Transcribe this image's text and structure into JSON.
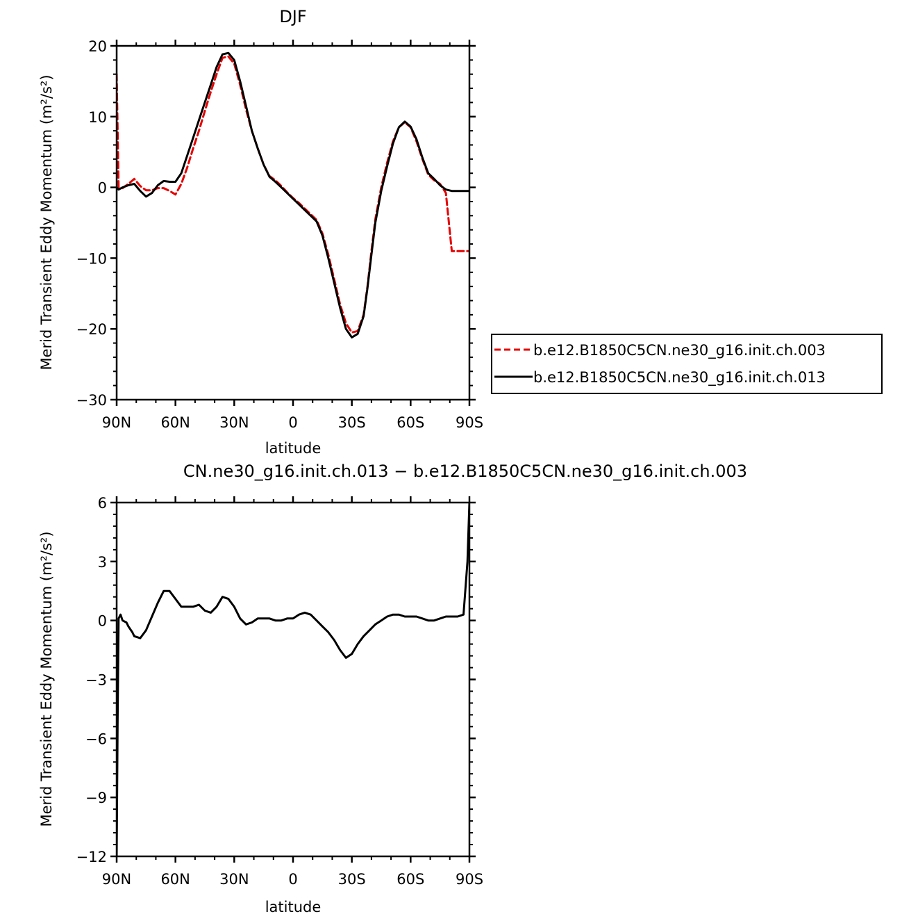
{
  "chart_data": [
    {
      "type": "line",
      "title": "DJF",
      "xlabel": "latitude",
      "ylabel": "Merid Transient Eddy Momentum (m²/s²)",
      "x_ticks": [
        {
          "value": 90,
          "label": "90N"
        },
        {
          "value": 60,
          "label": "60N"
        },
        {
          "value": 30,
          "label": "30N"
        },
        {
          "value": 0,
          "label": "0"
        },
        {
          "value": -30,
          "label": "30S"
        },
        {
          "value": -60,
          "label": "60S"
        },
        {
          "value": -90,
          "label": "90S"
        }
      ],
      "y_ticks": [
        {
          "value": 20,
          "label": "20"
        },
        {
          "value": 10,
          "label": "10"
        },
        {
          "value": 0,
          "label": "0"
        },
        {
          "value": -10,
          "label": "−10"
        },
        {
          "value": -20,
          "label": "−20"
        },
        {
          "value": -30,
          "label": "−30"
        }
      ],
      "xlim": [
        90,
        -90
      ],
      "ylim": [
        -30,
        20
      ],
      "legend": "outside-right",
      "series": [
        {
          "name": "b.e12.B1850C5CN.ne30_g16.init.ch.003",
          "color": "#e60000",
          "dash": "dashed",
          "x": [
            90,
            89,
            87,
            84,
            81,
            78,
            75,
            72,
            69,
            66,
            63,
            60,
            57,
            54,
            51,
            48,
            45,
            42,
            39,
            36,
            33,
            30,
            27,
            24,
            21,
            18,
            15,
            12,
            9,
            6,
            3,
            0,
            -3,
            -6,
            -9,
            -12,
            -15,
            -18,
            -21,
            -24,
            -27,
            -30,
            -33,
            -36,
            -38,
            -40,
            -42,
            -45,
            -48,
            -51,
            -54,
            -57,
            -60,
            -63,
            -66,
            -69,
            -72,
            -75,
            -78,
            -81,
            -84,
            -87,
            -89,
            -90
          ],
          "y": [
            16,
            0,
            -0.1,
            0.5,
            1.2,
            0.2,
            -0.4,
            -0.4,
            -0.1,
            -0.1,
            -0.5,
            -1.0,
            0.5,
            2.8,
            5.5,
            8.0,
            10.8,
            13.5,
            16.0,
            18.3,
            18.5,
            17.5,
            14.5,
            11.0,
            8.0,
            5.5,
            3.2,
            1.6,
            1.0,
            0.2,
            -0.7,
            -1.5,
            -2.2,
            -3.0,
            -3.8,
            -4.6,
            -6.5,
            -9.5,
            -13.0,
            -16.5,
            -19.2,
            -20.5,
            -20.3,
            -18.0,
            -14.0,
            -9.0,
            -4.5,
            0.0,
            3.5,
            6.5,
            8.5,
            9.2,
            8.5,
            6.5,
            4.0,
            1.8,
            1.0,
            0.5,
            -0.8,
            -9.0,
            -9.0,
            -9.0,
            -9.0,
            -9.0
          ]
        },
        {
          "name": "b.e12.B1850C5CN.ne30_g16.init.ch.013",
          "color": "#000000",
          "dash": "solid",
          "x": [
            90,
            89,
            87,
            84,
            81,
            78,
            75,
            72,
            69,
            66,
            63,
            60,
            57,
            54,
            51,
            48,
            45,
            42,
            39,
            36,
            33,
            30,
            27,
            24,
            21,
            18,
            15,
            12,
            9,
            6,
            3,
            0,
            -3,
            -6,
            -9,
            -12,
            -15,
            -18,
            -21,
            -24,
            -27,
            -30,
            -33,
            -36,
            -38,
            -40,
            -42,
            -45,
            -48,
            -51,
            -54,
            -57,
            -60,
            -63,
            -66,
            -69,
            -72,
            -75,
            -78,
            -81,
            -84,
            -87,
            -89,
            -90
          ],
          "y": [
            0,
            -0.3,
            0.0,
            0.3,
            0.5,
            -0.5,
            -1.3,
            -0.8,
            0.3,
            0.9,
            0.8,
            0.8,
            2.0,
            4.5,
            7.0,
            9.5,
            12.0,
            14.5,
            17.0,
            18.8,
            19.0,
            18.0,
            15.0,
            11.5,
            8.0,
            5.5,
            3.2,
            1.5,
            0.8,
            0.0,
            -0.8,
            -1.6,
            -2.4,
            -3.2,
            -4.0,
            -4.8,
            -6.8,
            -10.0,
            -13.5,
            -17.0,
            -20.0,
            -21.2,
            -20.7,
            -18.2,
            -14.2,
            -9.5,
            -5.0,
            -0.5,
            3.0,
            6.2,
            8.5,
            9.3,
            8.6,
            6.8,
            4.2,
            2.0,
            1.2,
            0.3,
            -0.3,
            -0.5,
            -0.5,
            -0.5,
            -0.5,
            -0.5
          ]
        }
      ]
    },
    {
      "type": "line",
      "title": "CN.ne30_g16.init.ch.013 − b.e12.B1850C5CN.ne30_g16.init.ch.003",
      "xlabel": "latitude",
      "ylabel": "Merid Transient Eddy Momentum (m²/s²)",
      "x_ticks": [
        {
          "value": 90,
          "label": "90N"
        },
        {
          "value": 60,
          "label": "60N"
        },
        {
          "value": 30,
          "label": "30N"
        },
        {
          "value": 0,
          "label": "0"
        },
        {
          "value": -30,
          "label": "30S"
        },
        {
          "value": -60,
          "label": "60S"
        },
        {
          "value": -90,
          "label": "90S"
        }
      ],
      "y_ticks": [
        {
          "value": 6,
          "label": "6"
        },
        {
          "value": 3,
          "label": "3"
        },
        {
          "value": 0,
          "label": "0"
        },
        {
          "value": -3,
          "label": "−3"
        },
        {
          "value": -6,
          "label": "−6"
        },
        {
          "value": -9,
          "label": "−9"
        },
        {
          "value": -12,
          "label": "−12"
        }
      ],
      "xlim": [
        90,
        -90
      ],
      "ylim": [
        -12,
        6
      ],
      "series": [
        {
          "color": "#000000",
          "dash": "solid",
          "x": [
            90,
            89.5,
            89,
            88,
            87,
            85,
            84,
            82,
            81,
            78,
            75,
            72,
            69,
            66,
            63,
            60,
            57,
            54,
            51,
            48,
            45,
            42,
            39,
            36,
            33,
            30,
            27,
            24,
            21,
            18,
            15,
            12,
            9,
            6,
            3,
            0,
            -3,
            -6,
            -9,
            -12,
            -15,
            -18,
            -21,
            -24,
            -27,
            -30,
            -33,
            -36,
            -39,
            -42,
            -45,
            -48,
            -51,
            -54,
            -57,
            -60,
            -63,
            -66,
            -69,
            -72,
            -75,
            -78,
            -81,
            -84,
            -87,
            -89,
            -90
          ],
          "y": [
            -12,
            -5,
            0.1,
            0.3,
            0.0,
            -0.1,
            -0.3,
            -0.6,
            -0.8,
            -0.9,
            -0.5,
            0.2,
            0.9,
            1.5,
            1.5,
            1.1,
            0.7,
            0.7,
            0.7,
            0.8,
            0.5,
            0.4,
            0.7,
            1.2,
            1.1,
            0.7,
            0.1,
            -0.2,
            -0.1,
            0.1,
            0.1,
            0.1,
            0.0,
            0.0,
            0.1,
            0.1,
            0.3,
            0.4,
            0.3,
            0.0,
            -0.3,
            -0.6,
            -1.0,
            -1.5,
            -1.9,
            -1.7,
            -1.2,
            -0.8,
            -0.5,
            -0.2,
            0.0,
            0.2,
            0.3,
            0.3,
            0.2,
            0.2,
            0.2,
            0.1,
            0.0,
            0.0,
            0.1,
            0.2,
            0.2,
            0.2,
            0.3,
            3.0,
            6.0
          ]
        }
      ]
    }
  ]
}
